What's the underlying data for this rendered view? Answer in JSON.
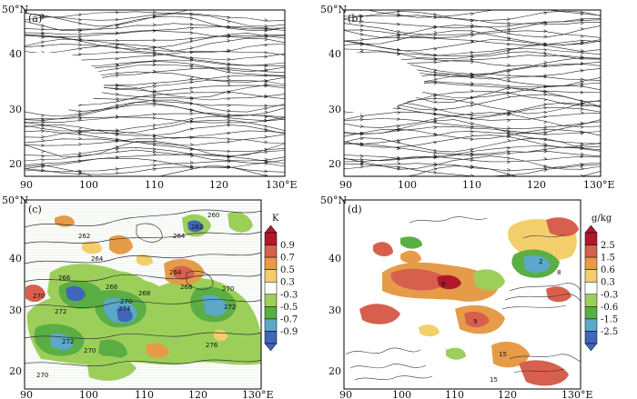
{
  "panels": [
    {
      "id": "a",
      "label": "(a)",
      "kind": "streamline",
      "lat_ticks": [
        "20",
        "30",
        "40",
        "50°N"
      ],
      "lon_ticks": [
        "90",
        "100",
        "110",
        "120",
        "130°E"
      ]
    },
    {
      "id": "b",
      "label": "(b)",
      "kind": "streamline",
      "lat_ticks": [
        "20",
        "30",
        "40",
        "50°N"
      ],
      "lon_ticks": [
        "90",
        "100",
        "110",
        "120",
        "130°E"
      ]
    },
    {
      "id": "c",
      "label": "(c)",
      "kind": "shaded-contour",
      "lat_ticks": [
        "20",
        "30",
        "40",
        "50°N"
      ],
      "lon_ticks": [
        "90",
        "100",
        "110",
        "120",
        "130°E"
      ],
      "colorbar": {
        "unit": "K",
        "ticks": [
          "0.9",
          "0.7",
          "0.5",
          "0.3",
          "-0.3",
          "-0.5",
          "-0.7",
          "-0.9"
        ],
        "colors": [
          "#b2182b",
          "#d6604d",
          "#e69b49",
          "#f2cf6b",
          "#ffffff",
          "#9ccf5a",
          "#5aae43",
          "#5ba8c8",
          "#3f66b8"
        ]
      },
      "contour_labels": [
        "260",
        "262",
        "262",
        "264",
        "264",
        "264",
        "266",
        "266",
        "268",
        "268",
        "270",
        "270",
        "270",
        "272",
        "272",
        "272",
        "274",
        "276",
        "270",
        "270"
      ]
    },
    {
      "id": "d",
      "label": "(d)",
      "kind": "shaded-contour",
      "lat_ticks": [
        "20",
        "30",
        "40",
        "50°N"
      ],
      "lon_ticks": [
        "90",
        "100",
        "110",
        "120",
        "130°E"
      ],
      "colorbar": {
        "unit": "g/kg",
        "ticks": [
          "2.5",
          "1.5",
          "0.6",
          "0.3",
          "-0.3",
          "-0.6",
          "-1.5",
          "-2.5"
        ],
        "colors": [
          "#b2182b",
          "#d6604d",
          "#e69b49",
          "#f2cf6b",
          "#ffffff",
          "#9ccf5a",
          "#5aae43",
          "#5ba8c8",
          "#3f66b8"
        ]
      },
      "contour_labels": [
        "2",
        "9",
        "9",
        "8",
        "15",
        "15"
      ]
    }
  ]
}
